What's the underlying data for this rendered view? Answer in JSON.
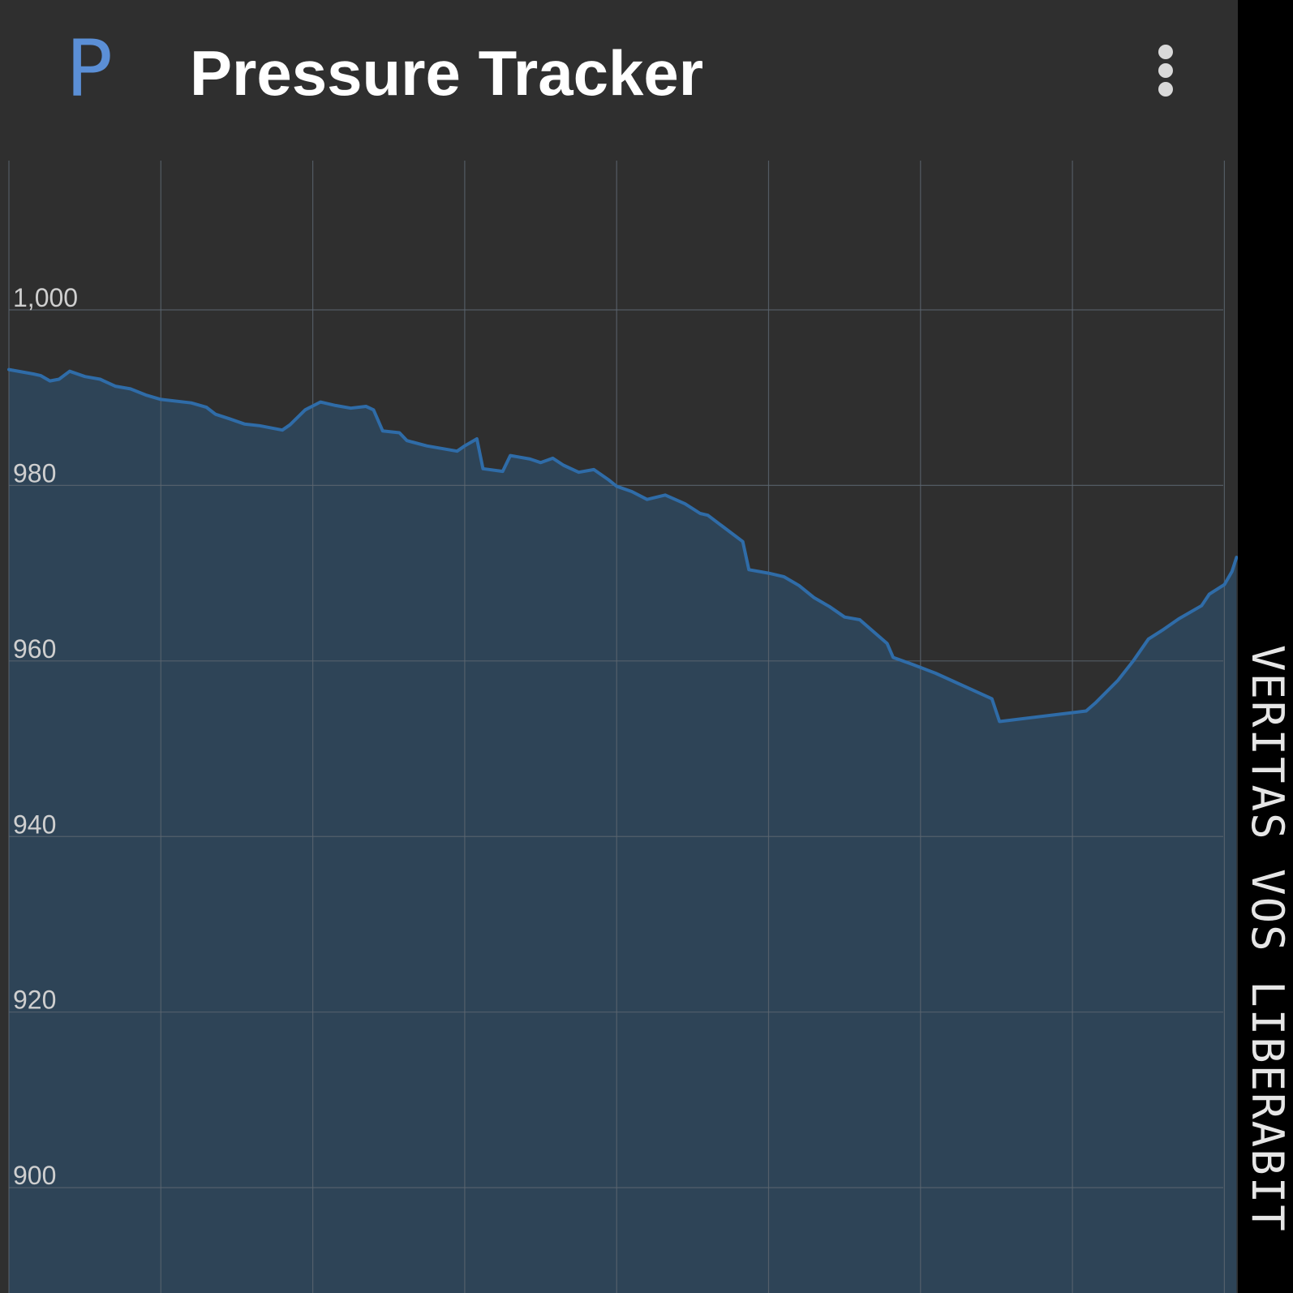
{
  "app": {
    "logo_letter": "P",
    "title": "Pressure Tracker",
    "menu_icon": "more-vert-icon"
  },
  "colors": {
    "background": "#2f2f2f",
    "accent": "#2f6ca8",
    "fill": "#2e4457",
    "grid": "#5c6670",
    "tick_label": "#cfcfcf",
    "logo": "#5b8fd6"
  },
  "watermark": "VERITAS VOS LIBERABIT",
  "chart_data": {
    "type": "area",
    "title": "",
    "xlabel": "",
    "ylabel": "",
    "ylim": [
      888,
      1017
    ],
    "xlim": [
      0,
      8
    ],
    "grid": true,
    "legend": "none",
    "y_ticks": [
      900,
      920,
      940,
      960,
      980,
      1000
    ],
    "y_tick_labels": [
      "900",
      "920",
      "940",
      "960",
      "980",
      "1,000"
    ],
    "series": [
      {
        "values": [
          [
            0.0,
            993.2
          ],
          [
            0.16,
            992.7
          ],
          [
            0.21,
            992.5
          ],
          [
            0.27,
            991.9
          ],
          [
            0.33,
            992.1
          ],
          [
            0.4,
            993.0
          ],
          [
            0.5,
            992.4
          ],
          [
            0.6,
            992.1
          ],
          [
            0.7,
            991.3
          ],
          [
            0.8,
            991.0
          ],
          [
            0.9,
            990.3
          ],
          [
            1.0,
            989.8
          ],
          [
            1.2,
            989.4
          ],
          [
            1.3,
            988.9
          ],
          [
            1.36,
            988.1
          ],
          [
            1.45,
            987.6
          ],
          [
            1.55,
            987.0
          ],
          [
            1.65,
            986.8
          ],
          [
            1.8,
            986.3
          ],
          [
            1.85,
            986.9
          ],
          [
            1.95,
            988.6
          ],
          [
            2.05,
            989.5
          ],
          [
            2.15,
            989.1
          ],
          [
            2.25,
            988.8
          ],
          [
            2.35,
            989.0
          ],
          [
            2.4,
            988.6
          ],
          [
            2.46,
            986.2
          ],
          [
            2.57,
            986.0
          ],
          [
            2.62,
            985.1
          ],
          [
            2.75,
            984.5
          ],
          [
            2.95,
            983.9
          ],
          [
            3.0,
            984.5
          ],
          [
            3.08,
            985.3
          ],
          [
            3.12,
            981.9
          ],
          [
            3.25,
            981.6
          ],
          [
            3.3,
            983.4
          ],
          [
            3.43,
            983.0
          ],
          [
            3.5,
            982.6
          ],
          [
            3.58,
            983.1
          ],
          [
            3.65,
            982.3
          ],
          [
            3.75,
            981.5
          ],
          [
            3.85,
            981.8
          ],
          [
            3.95,
            980.6
          ],
          [
            4.0,
            979.9
          ],
          [
            4.1,
            979.3
          ],
          [
            4.2,
            978.4
          ],
          [
            4.32,
            978.9
          ],
          [
            4.45,
            977.9
          ],
          [
            4.55,
            976.8
          ],
          [
            4.6,
            976.6
          ],
          [
            4.83,
            973.6
          ],
          [
            4.87,
            970.4
          ],
          [
            5.0,
            970.0
          ],
          [
            5.1,
            969.6
          ],
          [
            5.2,
            968.6
          ],
          [
            5.3,
            967.2
          ],
          [
            5.4,
            966.2
          ],
          [
            5.5,
            965.0
          ],
          [
            5.6,
            964.7
          ],
          [
            5.78,
            962.0
          ],
          [
            5.82,
            960.4
          ],
          [
            5.95,
            959.6
          ],
          [
            6.1,
            958.6
          ],
          [
            6.47,
            955.7
          ],
          [
            6.52,
            953.1
          ],
          [
            7.09,
            954.3
          ],
          [
            7.15,
            955.2
          ],
          [
            7.3,
            957.8
          ],
          [
            7.4,
            960.0
          ],
          [
            7.5,
            962.5
          ],
          [
            7.6,
            963.6
          ],
          [
            7.7,
            964.8
          ],
          [
            7.85,
            966.3
          ],
          [
            7.9,
            967.6
          ],
          [
            8.0,
            968.7
          ],
          [
            8.05,
            970.2
          ],
          [
            8.08,
            971.8
          ]
        ]
      }
    ]
  }
}
